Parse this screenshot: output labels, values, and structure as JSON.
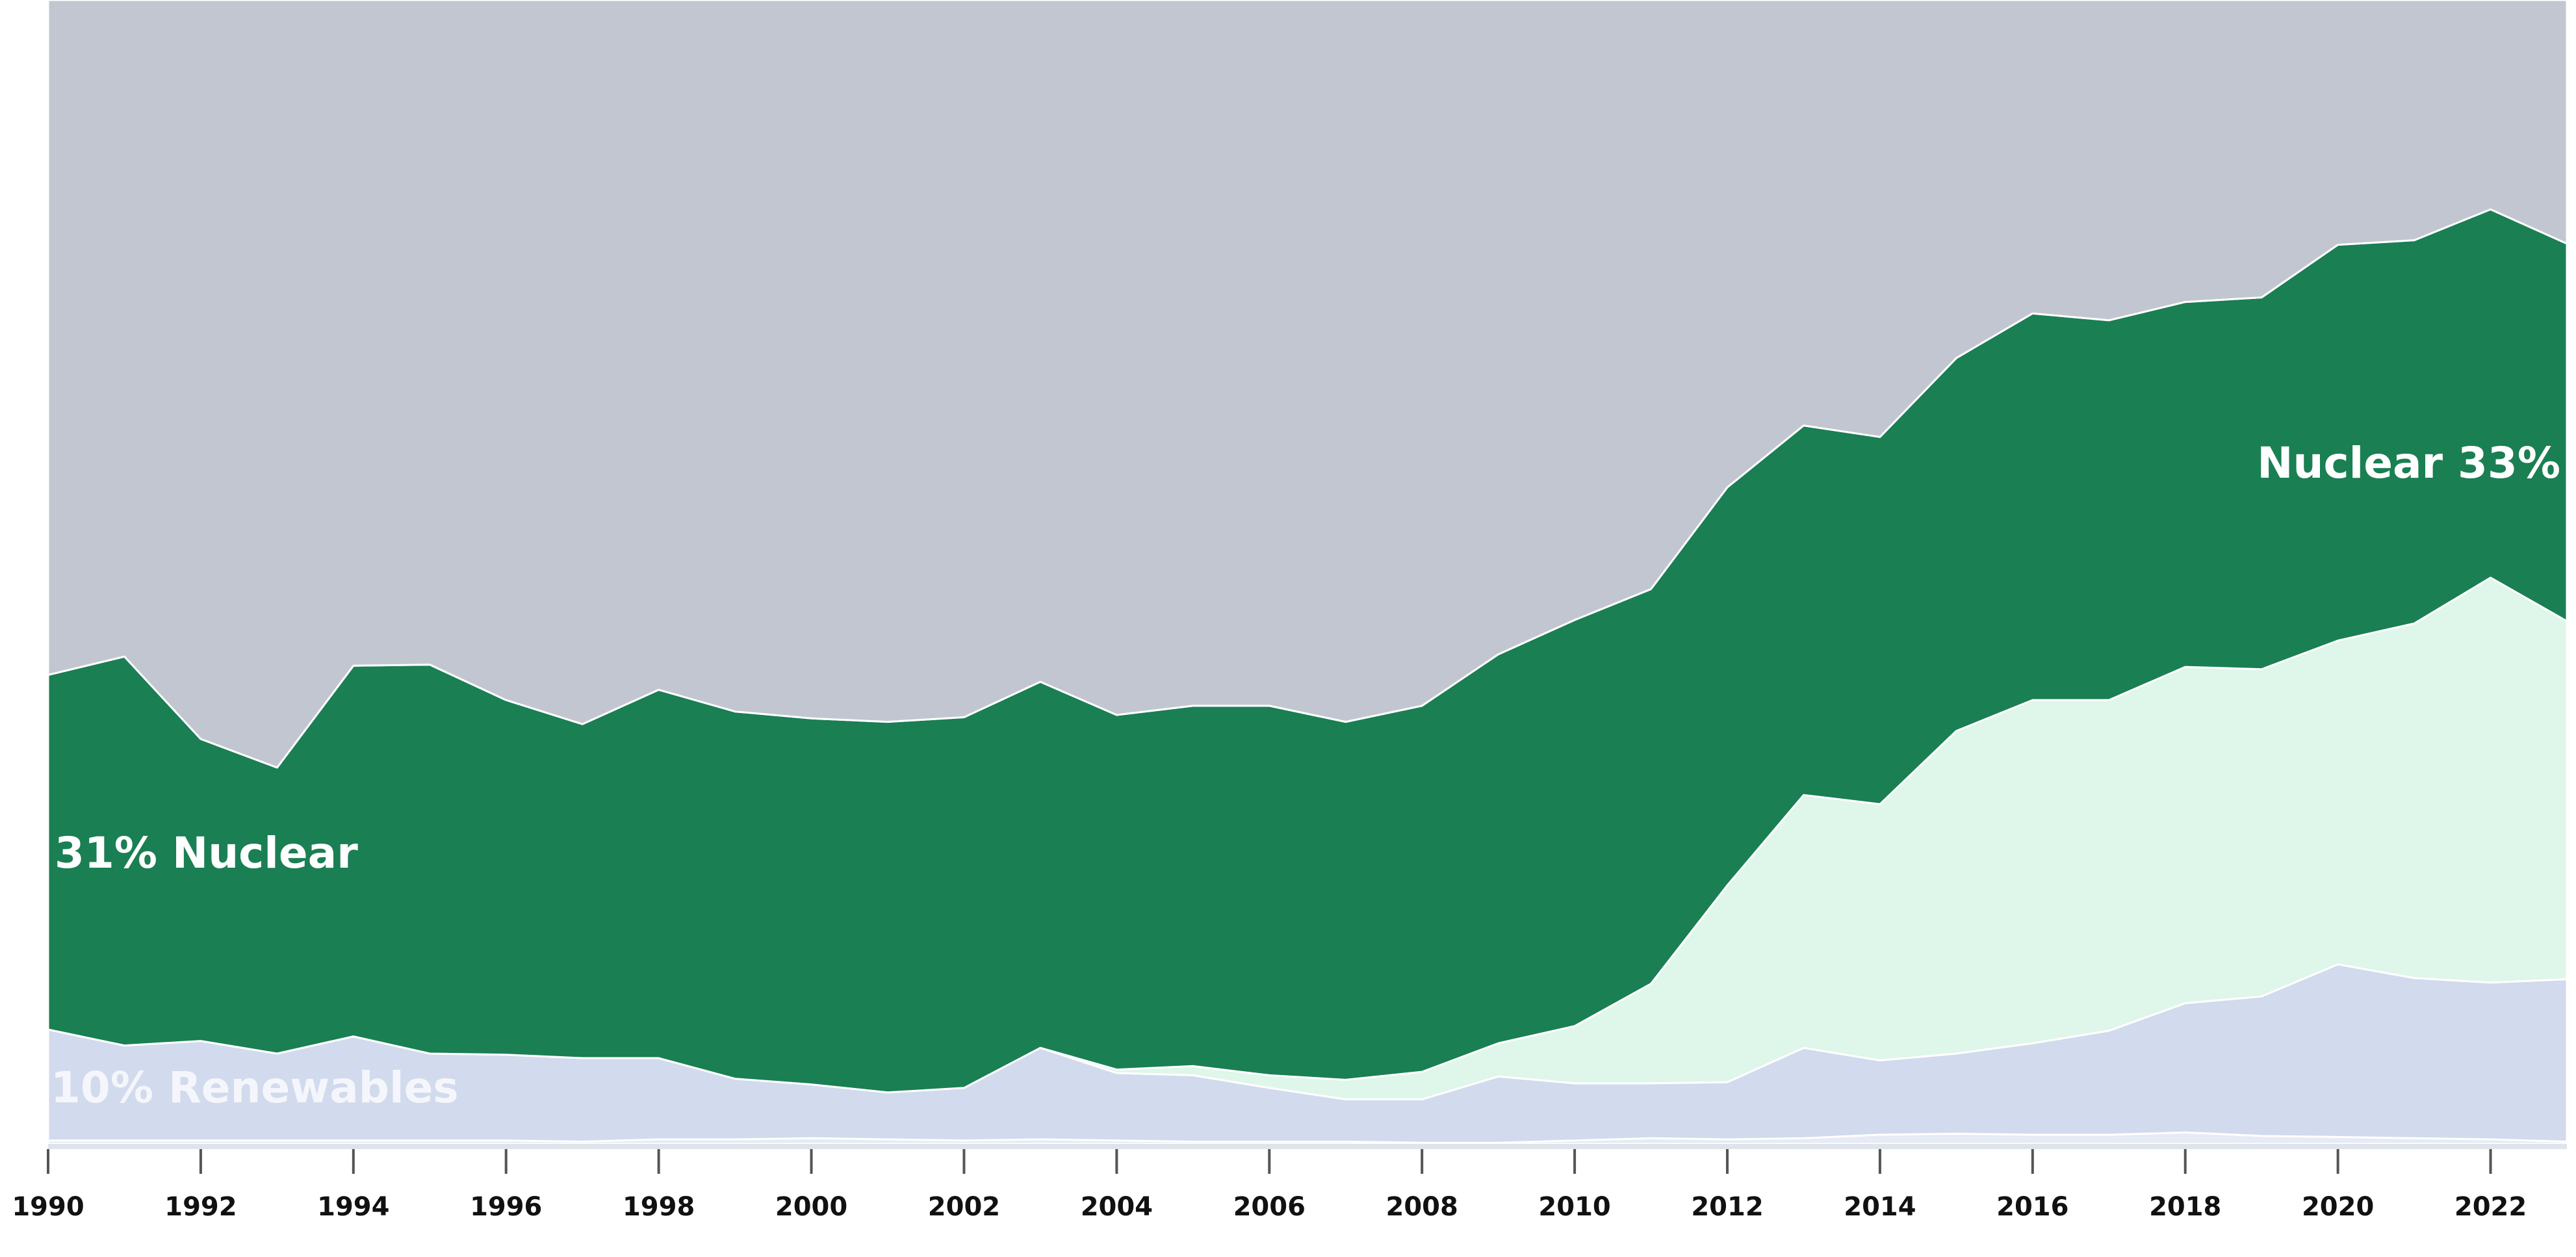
{
  "chart_data": {
    "type": "area",
    "stacked": true,
    "normalized": true,
    "x": [
      1990,
      1991,
      1992,
      1993,
      1994,
      1995,
      1996,
      1997,
      1998,
      1999,
      2000,
      2001,
      2002,
      2003,
      2004,
      2005,
      2006,
      2007,
      2008,
      2009,
      2010,
      2011,
      2012,
      2013,
      2014,
      2015,
      2016,
      2017,
      2018,
      2019,
      2020,
      2021,
      2022,
      2023
    ],
    "x_ticks": [
      "1990",
      "1992",
      "1994",
      "1996",
      "1998",
      "2000",
      "2002",
      "2004",
      "2006",
      "2008",
      "2010",
      "2012",
      "2014",
      "2016",
      "2018",
      "2020",
      "2022"
    ],
    "xlim": [
      1990,
      2023
    ],
    "ylim": [
      0,
      100
    ],
    "series": [
      {
        "color": "#e6ebf5",
        "values": [
          0.3,
          0.3,
          0.3,
          0.3,
          0.3,
          0.3,
          0.3,
          0.2,
          0.4,
          0.4,
          0.5,
          0.4,
          0.3,
          0.4,
          0.3,
          0.2,
          0.2,
          0.2,
          0.1,
          0.1,
          0.3,
          0.5,
          0.4,
          0.5,
          0.8,
          0.9,
          0.8,
          0.8,
          1.0,
          0.7,
          0.6,
          0.5,
          0.4,
          0.2
        ]
      },
      {
        "color": "#d2daed",
        "values": [
          9.7,
          8.3,
          8.7,
          7.6,
          9.1,
          7.6,
          7.5,
          7.3,
          7.1,
          5.3,
          4.7,
          4.1,
          4.6,
          8.0,
          5.9,
          5.8,
          4.7,
          3.7,
          3.8,
          5.8,
          5.0,
          4.8,
          5.0,
          7.9,
          6.5,
          7.0,
          8.0,
          9.1,
          11.3,
          12.2,
          15.1,
          14.0,
          13.7,
          14.2
        ]
      },
      {
        "color": "#dff6ea",
        "values": [
          0,
          0,
          0,
          0,
          0,
          0,
          0,
          0,
          0,
          0,
          0,
          0,
          0,
          0,
          0.3,
          0.8,
          1.1,
          1.7,
          2.4,
          2.9,
          5.0,
          8.7,
          17.2,
          22.1,
          22.4,
          28.2,
          30.0,
          28.9,
          29.4,
          28.6,
          28.3,
          31.0,
          35.4,
          31.3
        ]
      },
      {
        "name": "Nuclear",
        "color": "#1a7f53",
        "values": [
          31.0,
          34.0,
          26.4,
          25.0,
          32.4,
          34.0,
          31.0,
          29.2,
          32.2,
          32.1,
          32.0,
          32.4,
          32.4,
          32.0,
          31.0,
          31.5,
          32.3,
          31.3,
          32.0,
          34.0,
          35.5,
          34.5,
          34.8,
          32.3,
          32.1,
          32.6,
          33.8,
          33.2,
          31.9,
          32.5,
          34.6,
          33.5,
          32.2,
          33.0
        ]
      },
      {
        "color": "#c2c6d0",
        "values": [
          59.0,
          57.4,
          64.6,
          67.1,
          58.2,
          58.1,
          61.2,
          63.3,
          60.3,
          62.2,
          62.8,
          63.1,
          62.7,
          59.6,
          62.5,
          61.7,
          61.7,
          63.1,
          61.7,
          57.2,
          54.2,
          51.5,
          42.6,
          37.2,
          38.2,
          31.3,
          27.4,
          28.0,
          26.4,
          26.0,
          21.4,
          21.0,
          18.3,
          21.3
        ]
      }
    ],
    "annotations": [
      {
        "text": "31% Nuclear",
        "series": "Nuclear",
        "at": 1990
      },
      {
        "text": "Nuclear 33%",
        "series": "Nuclear",
        "at": 2023
      },
      {
        "text": "10% Renewables",
        "at": 1990
      }
    ]
  }
}
